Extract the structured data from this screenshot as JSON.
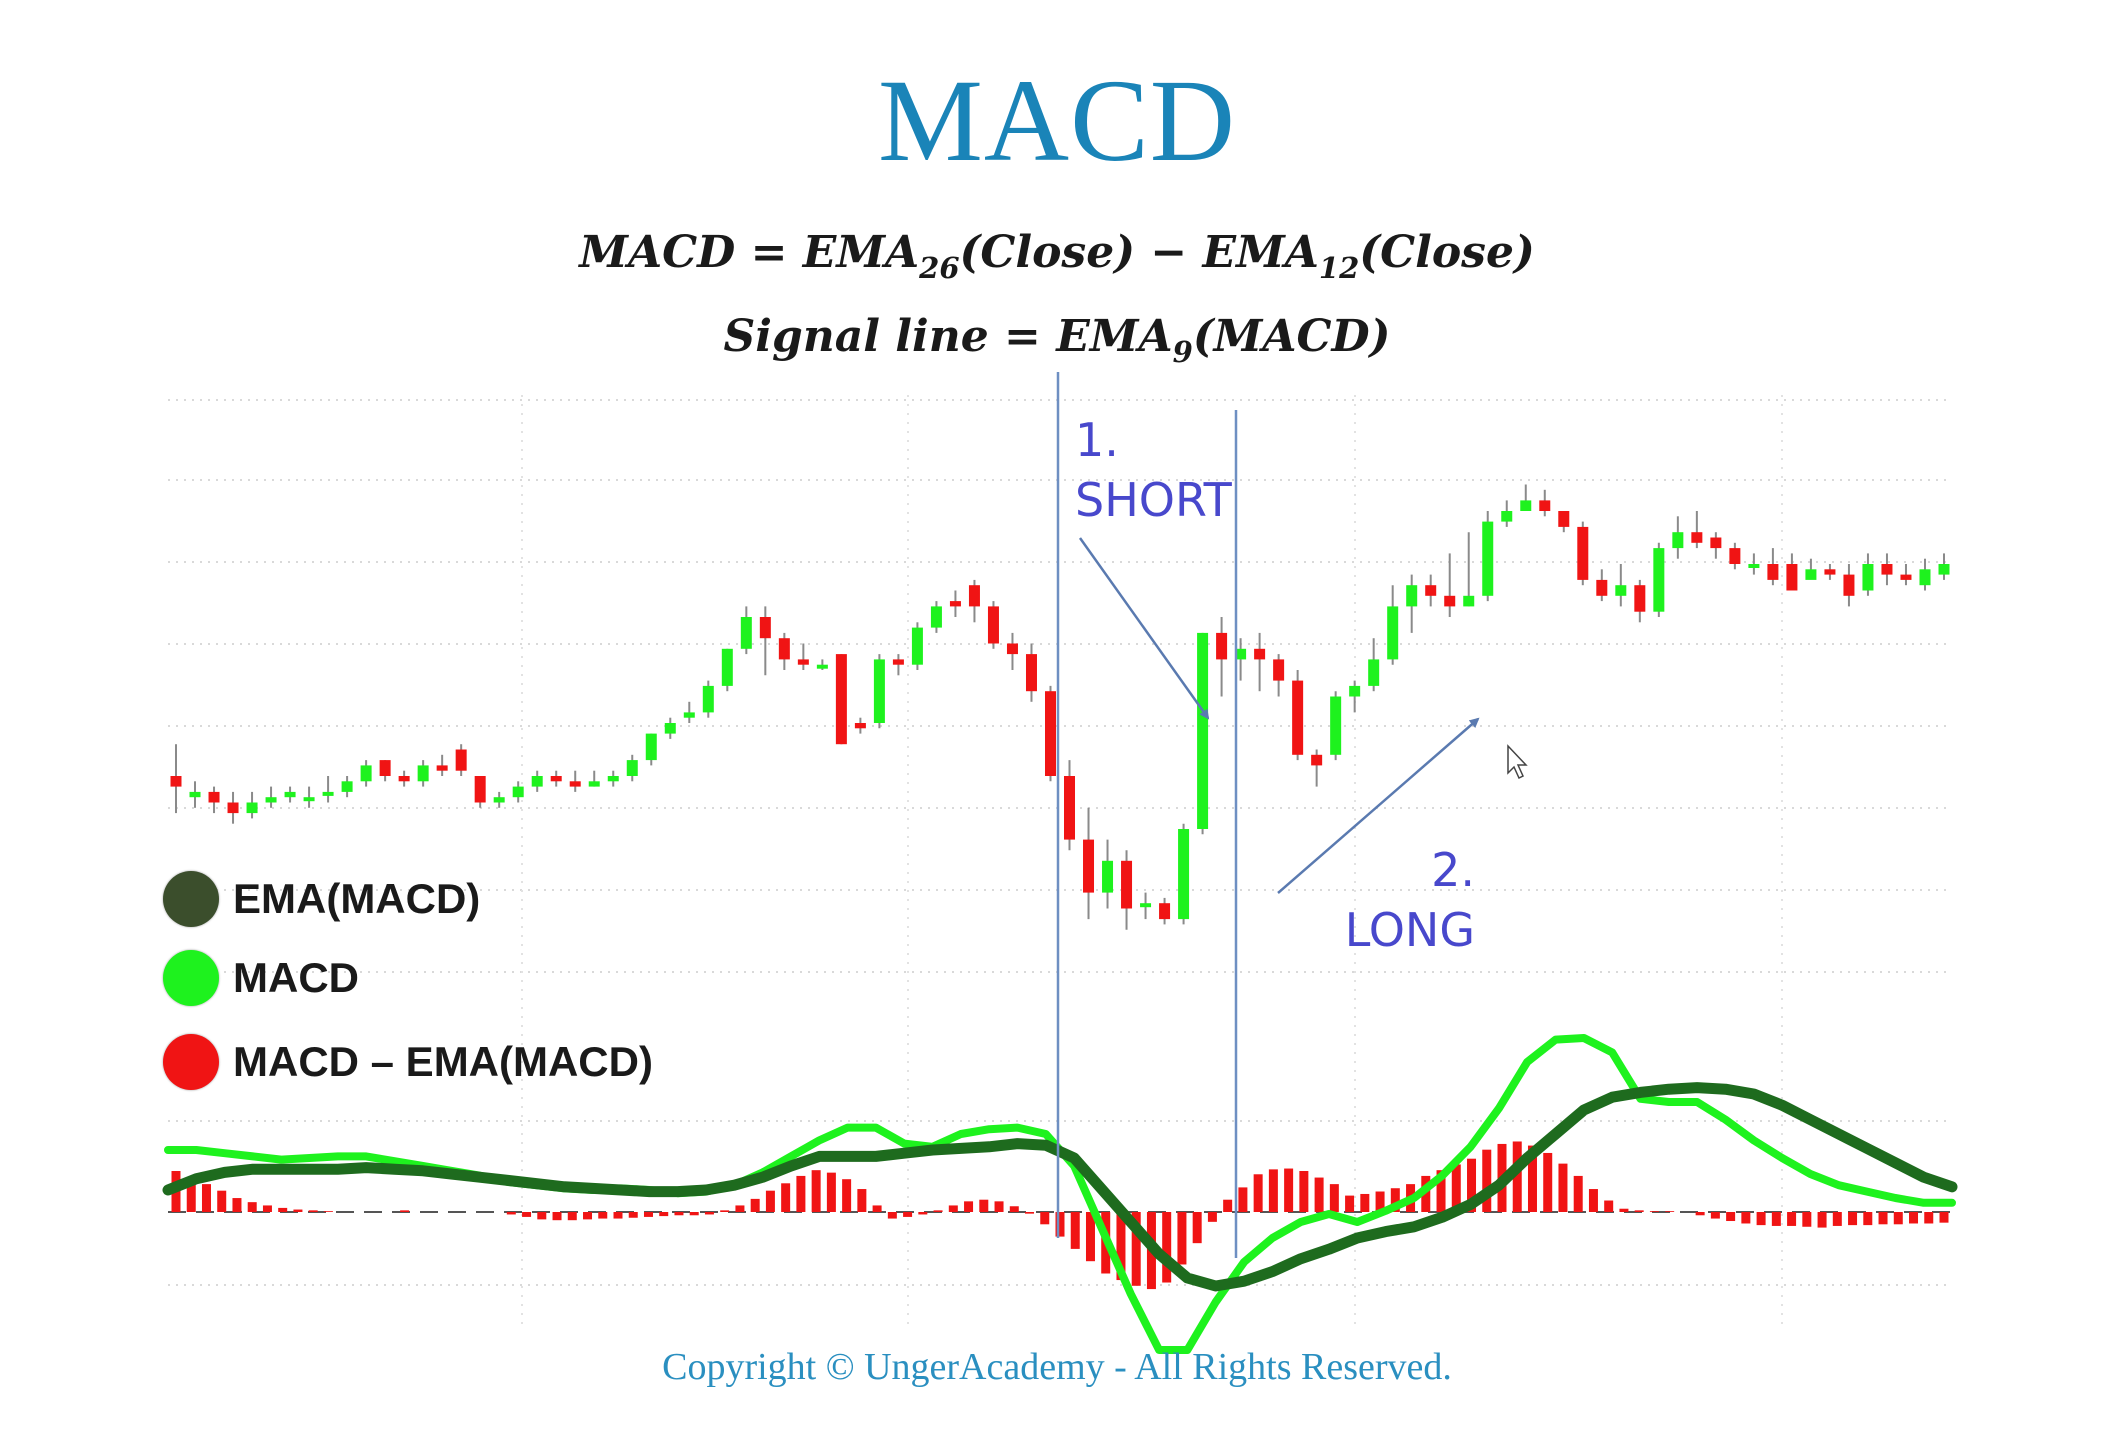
{
  "title": "MACD",
  "formula1": {
    "lhs": "MACD",
    "eq": " = ",
    "ema1": "EMA",
    "sub1": "26",
    "arg1": "(Close)",
    "minus": " − ",
    "ema2": "EMA",
    "sub2": "12",
    "arg2": "(Close)"
  },
  "formula2": {
    "lhs": "Signal line",
    "eq": " = ",
    "ema": "EMA",
    "sub": "9",
    "arg": "(MACD)"
  },
  "legend": [
    {
      "label": "EMA(MACD)",
      "color": "#3b4e2c"
    },
    {
      "label": "MACD",
      "color": "#1ef21e"
    },
    {
      "label": "MACD – EMA(MACD)",
      "color": "#f01414"
    }
  ],
  "annotations": {
    "short": {
      "number": "1.",
      "label": "SHORT"
    },
    "long": {
      "number": "2.",
      "label": "LONG"
    }
  },
  "copyright": "Copyright © UngerAcademy - All Rights Reserved.",
  "colors": {
    "up": "#1ef21e",
    "down": "#f01414",
    "signal": "#1e6b1e",
    "macd": "#1ef21e",
    "hist": "#f01414",
    "annotation": "#4848cc",
    "title": "#1a84b8"
  },
  "chart_data": [
    {
      "type": "candlestick",
      "ylim": [
        0,
        100
      ],
      "grid": true,
      "series": [
        {
          "values": [
            [
              30,
              28,
              36,
              23
            ],
            [
              26,
              27,
              29,
              24
            ],
            [
              27,
              25,
              28,
              23
            ],
            [
              25,
              23,
              27,
              21
            ],
            [
              23,
              25,
              27,
              22
            ],
            [
              25,
              26,
              28,
              24
            ],
            [
              26,
              27,
              28,
              25
            ],
            [
              26,
              26,
              28,
              24
            ],
            [
              27,
              27,
              30,
              25
            ],
            [
              27,
              29,
              30,
              26
            ],
            [
              29,
              32,
              33,
              28
            ],
            [
              33,
              30,
              33,
              29
            ],
            [
              30,
              29,
              31,
              28
            ],
            [
              29,
              32,
              33,
              28
            ],
            [
              32,
              31,
              34,
              30
            ],
            [
              35,
              31,
              36,
              30
            ],
            [
              30,
              25,
              30,
              24
            ],
            [
              25,
              26,
              27,
              24
            ],
            [
              26,
              28,
              29,
              25
            ],
            [
              28,
              30,
              31,
              27
            ],
            [
              30,
              29,
              31,
              28
            ],
            [
              29,
              28,
              31,
              27
            ],
            [
              28,
              29,
              31,
              28
            ],
            [
              29,
              30,
              31,
              28
            ],
            [
              30,
              33,
              34,
              29
            ],
            [
              33,
              38,
              38,
              32
            ],
            [
              38,
              40,
              41,
              37
            ],
            [
              41,
              42,
              44,
              40
            ],
            [
              42,
              47,
              48,
              41
            ],
            [
              47,
              54,
              54,
              46
            ],
            [
              54,
              60,
              62,
              53
            ],
            [
              60,
              56,
              62,
              49
            ],
            [
              56,
              52,
              57,
              50
            ],
            [
              52,
              51,
              55,
              50
            ],
            [
              51,
              51,
              52,
              50
            ],
            [
              53,
              36,
              53,
              36
            ],
            [
              40,
              39,
              41,
              38
            ],
            [
              40,
              52,
              53,
              39
            ],
            [
              52,
              51,
              53,
              49
            ],
            [
              51,
              58,
              59,
              50
            ],
            [
              58,
              62,
              63,
              57
            ],
            [
              63,
              62,
              65,
              60
            ],
            [
              66,
              62,
              67,
              59
            ],
            [
              62,
              55,
              63,
              54
            ],
            [
              55,
              53,
              57,
              50
            ],
            [
              53,
              46,
              55,
              44
            ],
            [
              46,
              30,
              47,
              29
            ],
            [
              30,
              18,
              33,
              16
            ],
            [
              18,
              8,
              24,
              3
            ],
            [
              8,
              14,
              18,
              5
            ],
            [
              14,
              5,
              16,
              1
            ],
            [
              6,
              6,
              8,
              3
            ],
            [
              6,
              3,
              7,
              2
            ],
            [
              3,
              20,
              21,
              2
            ],
            [
              20,
              57,
              57,
              19
            ],
            [
              57,
              52,
              60,
              45
            ],
            [
              52,
              54,
              56,
              48
            ],
            [
              54,
              52,
              57,
              46
            ],
            [
              52,
              48,
              53,
              45
            ],
            [
              48,
              34,
              50,
              33
            ],
            [
              34,
              32,
              35,
              28
            ],
            [
              34,
              45,
              46,
              33
            ],
            [
              45,
              47,
              48,
              42
            ],
            [
              47,
              52,
              56,
              46
            ],
            [
              52,
              62,
              66,
              51
            ],
            [
              62,
              66,
              68,
              57
            ],
            [
              66,
              64,
              68,
              62
            ],
            [
              64,
              62,
              72,
              60
            ],
            [
              62,
              64,
              76,
              62
            ],
            [
              64,
              78,
              80,
              63
            ],
            [
              78,
              80,
              82,
              77
            ],
            [
              80,
              82,
              85,
              81
            ],
            [
              82,
              80,
              84,
              79
            ],
            [
              80,
              77,
              80,
              76
            ],
            [
              77,
              67,
              78,
              66
            ],
            [
              67,
              64,
              69,
              63
            ],
            [
              64,
              66,
              70,
              62
            ],
            [
              66,
              61,
              67,
              59
            ],
            [
              61,
              73,
              74,
              60
            ],
            [
              73,
              76,
              79,
              71
            ],
            [
              76,
              74,
              80,
              73
            ],
            [
              75,
              73,
              76,
              71
            ],
            [
              73,
              70,
              74,
              69
            ],
            [
              70,
              70,
              72,
              68
            ],
            [
              70,
              67,
              73,
              66
            ],
            [
              70,
              65,
              72,
              66
            ],
            [
              67,
              69,
              71,
              68
            ],
            [
              69,
              68,
              70,
              67
            ],
            [
              68,
              64,
              70,
              62
            ],
            [
              65,
              70,
              72,
              64
            ],
            [
              70,
              68,
              72,
              66
            ],
            [
              68,
              67,
              70,
              66
            ],
            [
              66,
              69,
              71,
              65
            ],
            [
              68,
              70,
              72,
              67
            ]
          ]
        }
      ]
    },
    {
      "type": "line",
      "ylim": [
        -14,
        12
      ],
      "series": [
        {
          "name": "MACD",
          "values": [
            1.0,
            1.0,
            0.8,
            0.6,
            0.4,
            0.5,
            0.6,
            0.6,
            0.3,
            0.0,
            -0.3,
            -0.6,
            -1.0,
            -1.2,
            -1.4,
            -1.5,
            -1.4,
            -1.5,
            -1.7,
            -1.6,
            -1.2,
            -0.4,
            0.6,
            1.6,
            2.4,
            2.4,
            1.4,
            1.2,
            2.0,
            2.3,
            2.4,
            2.0,
            0.0,
            -4.0,
            -8.0,
            -11.5,
            -11.5,
            -8.5,
            -6.0,
            -4.5,
            -3.5,
            -3.0,
            -3.5,
            -2.8,
            -2.0,
            -0.6,
            1.2,
            3.6,
            6.5,
            7.9,
            8.0,
            7.1,
            4.2,
            4.0,
            4.0,
            2.9,
            1.6,
            0.5,
            -0.5,
            -1.2,
            -1.6,
            -2.0,
            -2.3,
            -2.3
          ]
        },
        {
          "name": "EMA(MACD)",
          "values": [
            -1.5,
            -0.8,
            -0.4,
            -0.2,
            -0.2,
            -0.2,
            -0.2,
            -0.1,
            -0.2,
            -0.3,
            -0.5,
            -0.7,
            -0.9,
            -1.1,
            -1.3,
            -1.4,
            -1.5,
            -1.6,
            -1.6,
            -1.5,
            -1.2,
            -0.7,
            0.0,
            0.6,
            0.6,
            0.6,
            0.8,
            1.0,
            1.1,
            1.2,
            1.4,
            1.3,
            0.5,
            -1.5,
            -3.5,
            -5.5,
            -7.0,
            -7.5,
            -7.2,
            -6.6,
            -5.8,
            -5.2,
            -4.5,
            -4.1,
            -3.8,
            -3.2,
            -2.4,
            -1.2,
            0.5,
            2.0,
            3.5,
            4.3,
            4.6,
            4.8,
            4.9,
            4.8,
            4.5,
            3.8,
            2.9,
            2.0,
            1.1,
            0.2,
            -0.7,
            -1.3
          ]
        }
      ]
    },
    {
      "type": "bar",
      "series": [
        {
          "name": "MACD – EMA(MACD)",
          "values": [
            5.0,
            4.2,
            3.4,
            2.6,
            1.7,
            1.2,
            0.8,
            0.5,
            0.3,
            0.2,
            0.1,
            0.0,
            0.0,
            0.0,
            0.0,
            0.2,
            0.0,
            0.0,
            0.0,
            0.0,
            0.0,
            0.0,
            -0.3,
            -0.6,
            -0.9,
            -1.0,
            -1.0,
            -0.9,
            -0.8,
            -0.8,
            -0.7,
            -0.6,
            -0.5,
            -0.4,
            -0.4,
            -0.3,
            0.2,
            0.8,
            1.6,
            2.6,
            3.5,
            4.4,
            5.1,
            4.8,
            4.0,
            2.8,
            0.8,
            -0.8,
            -0.6,
            -0.3,
            0.2,
            0.8,
            1.3,
            1.5,
            1.3,
            0.7,
            -0.2,
            -1.5,
            -3.0,
            -4.5,
            -6.0,
            -7.5,
            -8.3,
            -9.0,
            -9.4,
            -8.6,
            -6.4,
            -3.8,
            -1.2,
            1.5,
            3.0,
            4.6,
            5.2,
            5.3,
            5.0,
            4.2,
            3.4,
            2.0,
            2.2,
            2.5,
            2.9,
            3.4,
            4.4,
            5.1,
            5.8,
            6.5,
            7.6,
            8.3,
            8.6,
            8.1,
            7.2,
            5.9,
            4.4,
            2.8,
            1.4,
            0.4,
            0.2,
            0.1,
            0.1,
            0.0,
            -0.4,
            -0.8,
            -1.1,
            -1.4,
            -1.6,
            -1.7,
            -1.7,
            -1.8,
            -1.9,
            -1.7,
            -1.6,
            -1.6,
            -1.5,
            -1.5,
            -1.4,
            -1.4,
            -1.3
          ]
        }
      ]
    }
  ]
}
